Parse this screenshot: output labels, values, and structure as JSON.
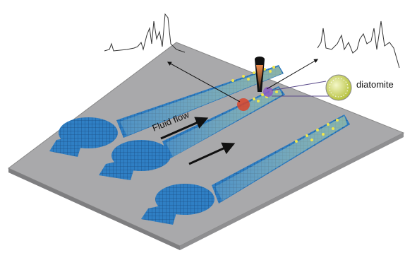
{
  "labels": {
    "flow": "Fluid flow",
    "inset": "diatomite"
  }
}
